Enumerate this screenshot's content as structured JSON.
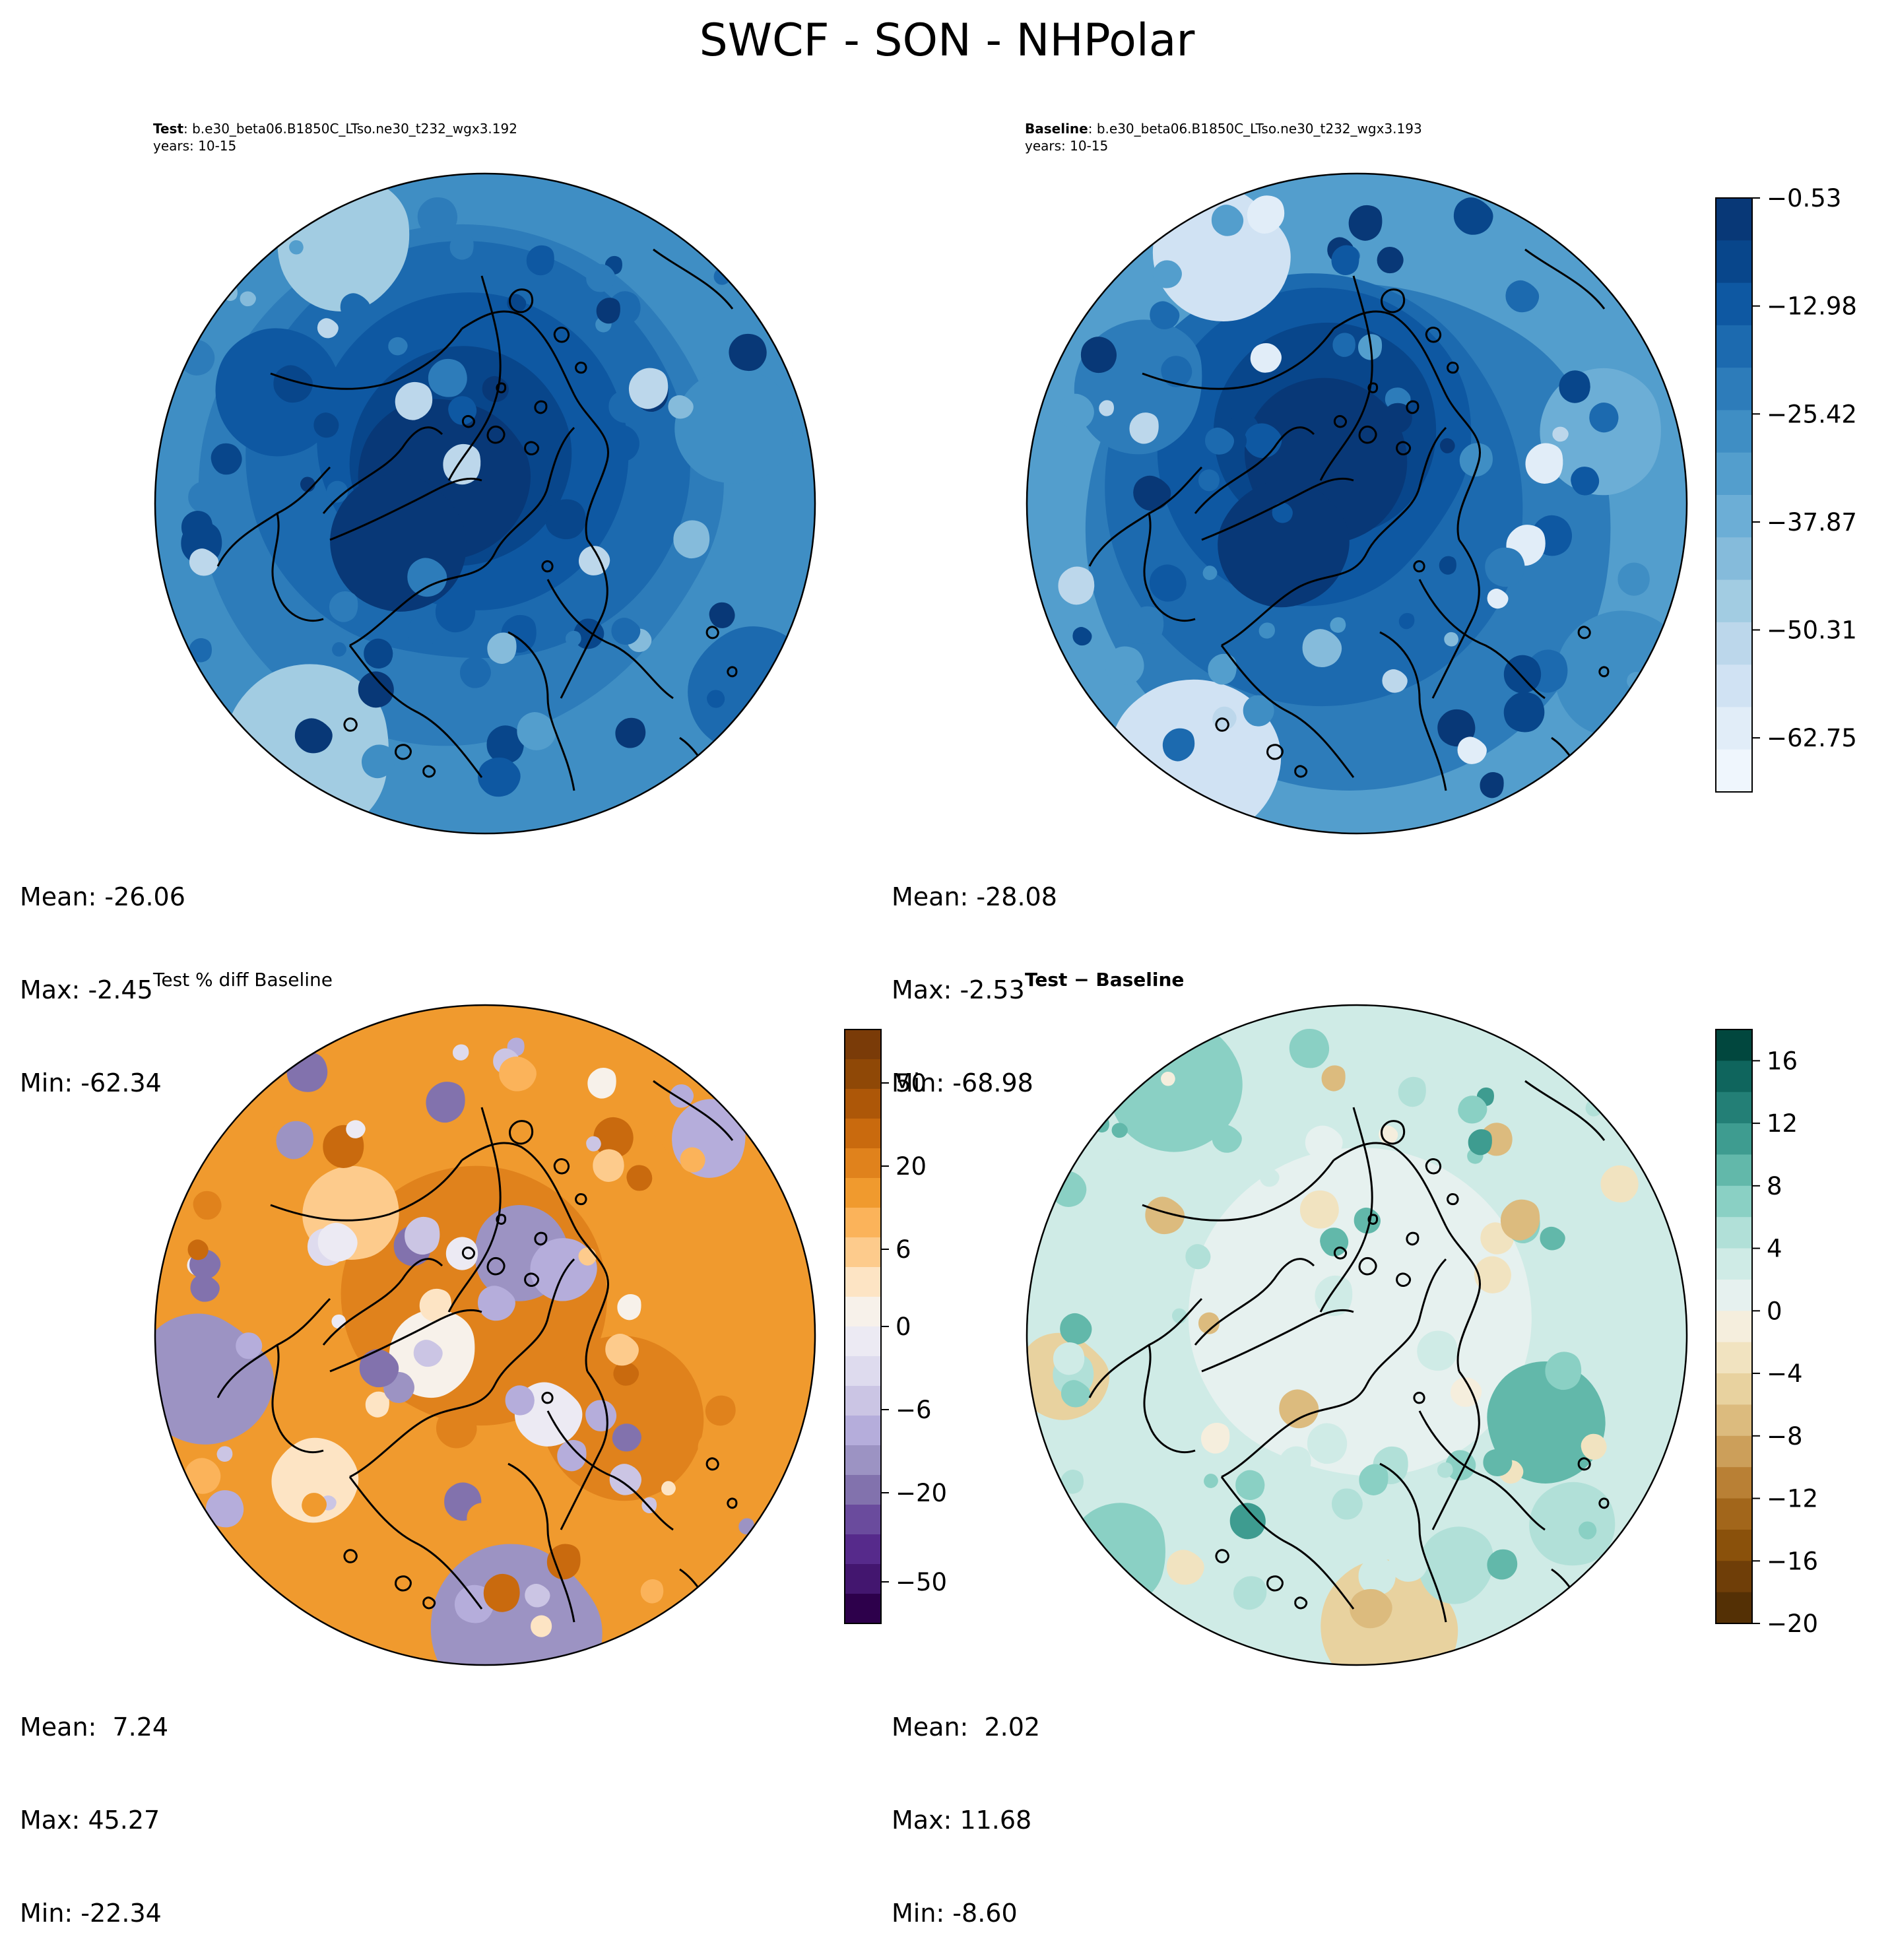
{
  "figure": {
    "title": "SWCF - SON - NHPolar"
  },
  "chart_data": [
    {
      "type": "heatmap",
      "name": "Test",
      "title_bold": "Test",
      "title_rest": ": b.e30_beta06.B1850C_LTso.ne30_t232_wgx3.192",
      "years": "years: 10-15",
      "projection": "north polar stereographic",
      "stats": {
        "mean": "Mean: -26.06",
        "max": "Max: -2.45",
        "min": "Min: -62.34"
      },
      "field_range": [
        -62.34,
        -2.45
      ]
    },
    {
      "type": "heatmap",
      "name": "Baseline",
      "title_bold": "Baseline",
      "title_rest": ": b.e30_beta06.B1850C_LTso.ne30_t232_wgx3.193",
      "years": "years: 10-15",
      "projection": "north polar stereographic",
      "stats": {
        "mean": "Mean: -28.08",
        "max": "Max: -2.53",
        "min": "Min: -68.98"
      },
      "field_range": [
        -68.98,
        -2.53
      ],
      "colorbar": {
        "colormap": "Blues_r",
        "range": [
          -68.98,
          -0.53
        ],
        "ticks": [
          -0.53,
          -12.98,
          -25.42,
          -37.87,
          -50.31,
          -62.75
        ],
        "tick_labels": [
          "−0.53",
          "−12.98",
          "−25.42",
          "−37.87",
          "−50.31",
          "−62.75"
        ],
        "colors": [
          "#eff6fd",
          "#e1edf8",
          "#d0e2f3",
          "#bcd7eb",
          "#a2cce2",
          "#85bbdb",
          "#6caed6",
          "#539ecd",
          "#3f8ec4",
          "#2d7cba",
          "#1c6aaf",
          "#0e58a2",
          "#08468b",
          "#083877"
        ]
      }
    },
    {
      "type": "heatmap",
      "name": "Test % diff Baseline",
      "title": "Test % diff Baseline",
      "projection": "north polar stereographic",
      "stats": {
        "mean": "Mean:  7.24",
        "max": "Max: 45.27",
        "min": "Min: -22.34"
      },
      "colorbar": {
        "colormap": "PuOr_r",
        "range": [
          -100,
          100
        ],
        "ticks": [
          50,
          20,
          6,
          0,
          -6,
          -20,
          -50
        ],
        "tick_labels": [
          "50",
          "20",
          "6",
          "0",
          "−6",
          "−20",
          "−50"
        ],
        "colors": [
          "#2d004b",
          "#43166f",
          "#562a8b",
          "#6a4b9d",
          "#8272ad",
          "#9c93c3",
          "#b5addb",
          "#cbc5e4",
          "#dedbee",
          "#eceaf3",
          "#f7f1ea",
          "#fde4c4",
          "#fdcb8c",
          "#fbb35a",
          "#f09a2e",
          "#e0821c",
          "#c96a0e",
          "#ad5708",
          "#8f4806",
          "#7a3b08"
        ]
      }
    },
    {
      "type": "heatmap",
      "name": "Test - Baseline",
      "title": "Test − Baseline",
      "projection": "north polar stereographic",
      "stats": {
        "mean": "Mean:  2.02",
        "max": "Max: 11.68",
        "min": "Min: -8.60"
      },
      "colorbar": {
        "colormap": "BrBG",
        "range": [
          -20,
          18
        ],
        "ticks": [
          16,
          12,
          8,
          4,
          0,
          -4,
          -8,
          -12,
          -16,
          -20
        ],
        "tick_labels": [
          "16",
          "12",
          "8",
          "4",
          "0",
          "−4",
          "−8",
          "−12",
          "−16",
          "−20"
        ],
        "colors": [
          "#543005",
          "#6f3e08",
          "#8a510b",
          "#a2661b",
          "#b98035",
          "#cc9f5a",
          "#dcbb7e",
          "#e8d29f",
          "#f1e3c0",
          "#f5eedd",
          "#e6f1ef",
          "#cfebe6",
          "#b1e0d8",
          "#8ad0c4",
          "#62b8aa",
          "#3e9c90",
          "#237f76",
          "#0f655d",
          "#01473e"
        ]
      }
    }
  ]
}
